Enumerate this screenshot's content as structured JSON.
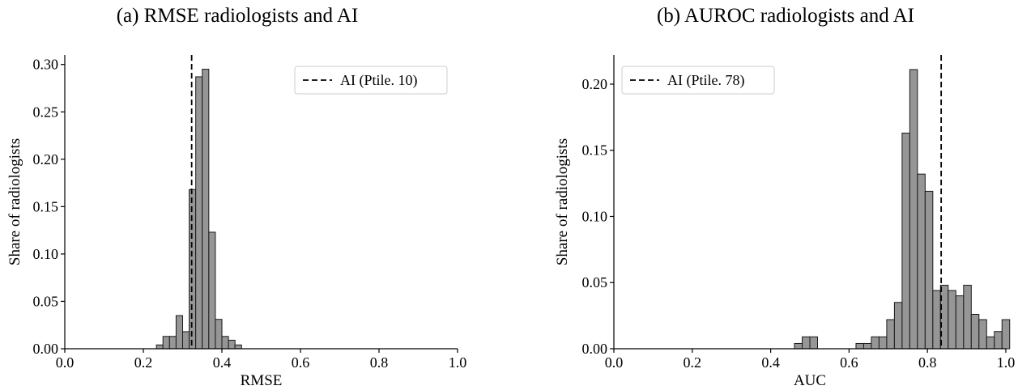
{
  "chart_data": [
    {
      "type": "bar",
      "title": "(a) RMSE radiologists and AI",
      "xlabel": "RMSE",
      "ylabel": "Share of radiologists",
      "xlim": [
        0.0,
        1.0
      ],
      "ylim": [
        0.0,
        0.31
      ],
      "xticks": [
        "0.0",
        "0.2",
        "0.4",
        "0.6",
        "0.8",
        "1.0"
      ],
      "yticks": [
        "0.00",
        "0.05",
        "0.10",
        "0.15",
        "0.20",
        "0.25",
        "0.30"
      ],
      "bin_width": 0.0167,
      "bins": [
        {
          "x": 0.2417,
          "y": 0.004
        },
        {
          "x": 0.2583,
          "y": 0.013
        },
        {
          "x": 0.275,
          "y": 0.013
        },
        {
          "x": 0.2917,
          "y": 0.035
        },
        {
          "x": 0.3083,
          "y": 0.018
        },
        {
          "x": 0.325,
          "y": 0.168
        },
        {
          "x": 0.3417,
          "y": 0.287
        },
        {
          "x": 0.3583,
          "y": 0.295
        },
        {
          "x": 0.375,
          "y": 0.123
        },
        {
          "x": 0.3917,
          "y": 0.031
        },
        {
          "x": 0.4083,
          "y": 0.013
        },
        {
          "x": 0.425,
          "y": 0.009
        },
        {
          "x": 0.4417,
          "y": 0.004
        }
      ],
      "reference_line": {
        "x": 0.323,
        "label": "AI (Ptile. 10)",
        "style": "dashed"
      },
      "legend_position": "top-right",
      "grid": false
    },
    {
      "type": "bar",
      "title": "(b) AUROC radiologists and AI",
      "xlabel": "AUC",
      "ylabel": "Share of radiologists",
      "xlim": [
        0.0,
        1.0
      ],
      "ylim": [
        0.0,
        0.222
      ],
      "xticks": [
        "0.0",
        "0.2",
        "0.4",
        "0.6",
        "0.8",
        "1.0"
      ],
      "yticks": [
        "0.00",
        "0.05",
        "0.10",
        "0.15",
        "0.20"
      ],
      "bin_width": 0.0196,
      "bins": [
        {
          "x": 0.4706,
          "y": 0.004
        },
        {
          "x": 0.4902,
          "y": 0.009
        },
        {
          "x": 0.5098,
          "y": 0.009
        },
        {
          "x": 0.6275,
          "y": 0.004
        },
        {
          "x": 0.6471,
          "y": 0.004
        },
        {
          "x": 0.6667,
          "y": 0.009
        },
        {
          "x": 0.6863,
          "y": 0.009
        },
        {
          "x": 0.7059,
          "y": 0.022
        },
        {
          "x": 0.7255,
          "y": 0.035
        },
        {
          "x": 0.7451,
          "y": 0.163
        },
        {
          "x": 0.7647,
          "y": 0.211
        },
        {
          "x": 0.7843,
          "y": 0.132
        },
        {
          "x": 0.8039,
          "y": 0.119
        },
        {
          "x": 0.8235,
          "y": 0.044
        },
        {
          "x": 0.8431,
          "y": 0.048
        },
        {
          "x": 0.8627,
          "y": 0.044
        },
        {
          "x": 0.8824,
          "y": 0.04
        },
        {
          "x": 0.902,
          "y": 0.048
        },
        {
          "x": 0.9216,
          "y": 0.026
        },
        {
          "x": 0.9412,
          "y": 0.022
        },
        {
          "x": 0.9608,
          "y": 0.009
        },
        {
          "x": 0.9804,
          "y": 0.013
        },
        {
          "x": 1.0,
          "y": 0.022
        }
      ],
      "reference_line": {
        "x": 0.835,
        "label": "AI (Ptile. 78)",
        "style": "dashed"
      },
      "legend_position": "top-left",
      "grid": false
    }
  ]
}
